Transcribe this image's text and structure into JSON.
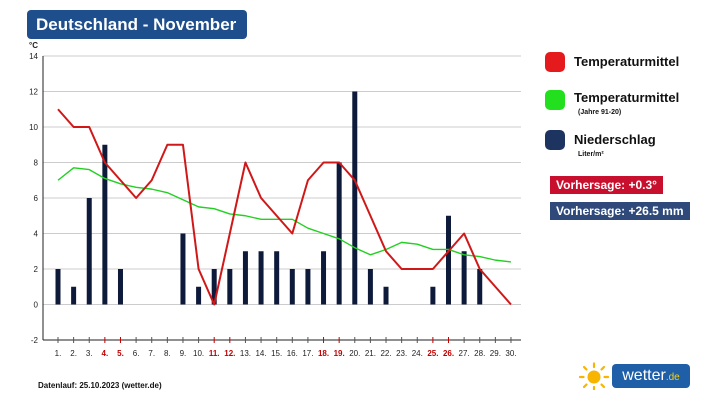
{
  "header": {
    "title": "Deutschland - November"
  },
  "legend": {
    "items": [
      {
        "label": "Temperaturmittel",
        "sub": "",
        "color": "#e41a1c"
      },
      {
        "label": "Temperaturmittel",
        "sub": "(Jahre 91-20)",
        "color": "#22e01e"
      },
      {
        "label": "Niederschlag",
        "sub": "Liter/m²",
        "color": "#1d3461"
      }
    ],
    "badges": [
      {
        "text": "Vorhersage: +0.3°",
        "color": "#c8102e"
      },
      {
        "text": "Vorhersage: +26.5 mm",
        "color": "#2f4a7a"
      }
    ]
  },
  "footer": {
    "text": "Datenlauf: 25.10.2023 (wetter.de)"
  },
  "logo": {
    "name": "wetter",
    "suffix": ".de",
    "icon": "sun-icon"
  },
  "colors": {
    "weekend": "#c00000",
    "axis": "#222222",
    "grid": "#cccccc"
  },
  "chart_data": {
    "type": "bar+line",
    "ylabel": "°C",
    "ylim": [
      -2,
      14
    ],
    "yticks": [
      -2,
      0,
      2,
      4,
      6,
      8,
      10,
      12,
      14
    ],
    "categories": [
      "1.",
      "2.",
      "3.",
      "4.",
      "5.",
      "6.",
      "7.",
      "8.",
      "9.",
      "10.",
      "11.",
      "12.",
      "13.",
      "14.",
      "15.",
      "16.",
      "17.",
      "18.",
      "19.",
      "20.",
      "21.",
      "22.",
      "23.",
      "24.",
      "25.",
      "26.",
      "27.",
      "28.",
      "29.",
      "30."
    ],
    "weekend_days": [
      4,
      5,
      11,
      12,
      18,
      19,
      25,
      26
    ],
    "series": [
      {
        "name": "Niederschlag",
        "type": "bar",
        "color": "#0d1a3a",
        "values": [
          2,
          1,
          6,
          9,
          2,
          0,
          0,
          0,
          4,
          1,
          2,
          2,
          3,
          3,
          3,
          2,
          2,
          3,
          8,
          12,
          2,
          1,
          0,
          0,
          1,
          5,
          3,
          2,
          0,
          0
        ]
      },
      {
        "name": "Temperaturmittel",
        "type": "line",
        "color": "#d01818",
        "values": [
          11,
          10,
          10,
          8,
          7,
          6,
          7,
          9,
          9,
          2,
          0,
          4,
          8,
          6,
          5,
          4,
          7,
          8,
          8,
          7,
          5,
          3,
          2,
          2,
          2,
          3,
          4,
          2,
          1,
          0
        ]
      },
      {
        "name": "Temperaturmittel (Jahre 91-20)",
        "type": "line",
        "color": "#22d022",
        "values": [
          7,
          7.7,
          7.6,
          7.1,
          6.8,
          6.6,
          6.5,
          6.3,
          5.9,
          5.5,
          5.4,
          5.1,
          5.0,
          4.8,
          4.8,
          4.8,
          4.3,
          4.0,
          3.7,
          3.2,
          2.8,
          3.1,
          3.5,
          3.4,
          3.1,
          3.1,
          2.8,
          2.7,
          2.5,
          2.4
        ]
      }
    ]
  }
}
